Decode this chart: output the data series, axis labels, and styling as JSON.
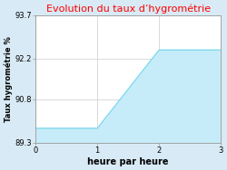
{
  "title": "Evolution du taux d’hygrométrie",
  "xlabel": "heure par heure",
  "ylabel": "Taux hygrométrie %",
  "x": [
    0,
    1,
    2,
    3
  ],
  "y": [
    89.8,
    89.8,
    92.5,
    92.5
  ],
  "ylim": [
    89.3,
    93.7
  ],
  "xlim": [
    0,
    3
  ],
  "yticks": [
    89.3,
    90.8,
    92.2,
    93.7
  ],
  "xticks": [
    0,
    1,
    2,
    3
  ],
  "line_color": "#7dd8f0",
  "fill_color": "#c5ecf8",
  "background_color": "#d8eaf5",
  "plot_bg_color": "#ffffff",
  "title_color": "#ff0000",
  "title_fontsize": 8,
  "axis_fontsize": 6,
  "xlabel_fontsize": 7,
  "ylabel_fontsize": 6
}
